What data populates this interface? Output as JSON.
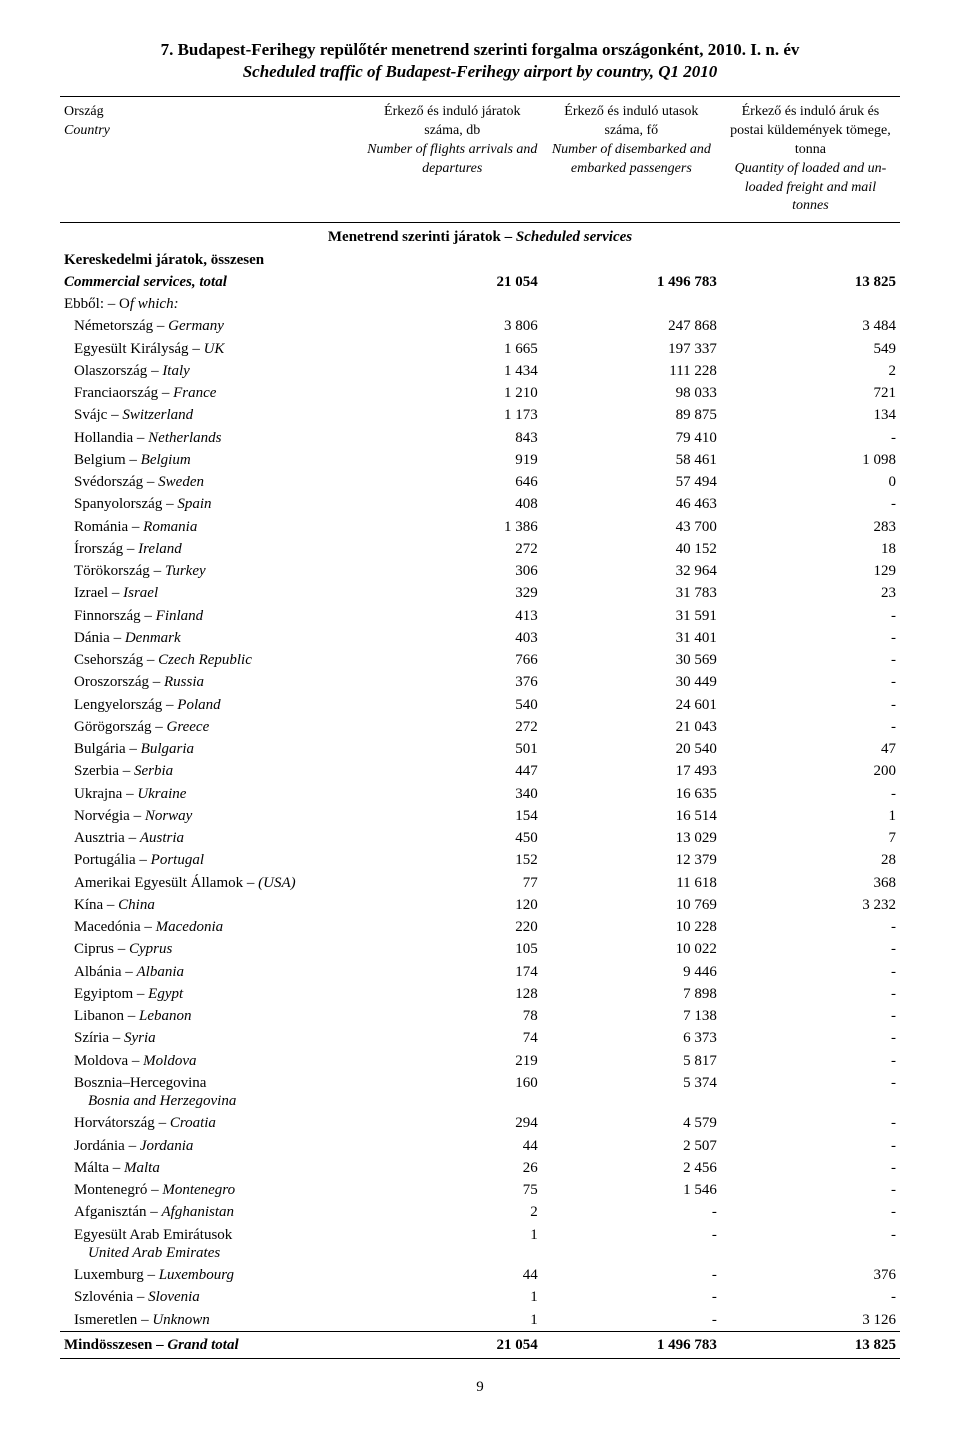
{
  "title_hu": "7. Budapest-Ferihegy repülőtér menetrend szerinti forgalma országonként, 2010. I. n. év",
  "title_en": "Scheduled traffic of Budapest-Ferihegy airport by country, Q1 2010",
  "page_number": "9",
  "headers": {
    "country_hu": "Ország",
    "country_en": "Country",
    "col1_hu": "Érkező és induló járatok száma, db",
    "col1_en": "Number of flights arrivals and departures",
    "col2_hu": "Érkező és induló utasok száma, fő",
    "col2_en": "Number of disembarked and embarked passengers",
    "col3_hu": "Érkező és induló áruk és postai küldemények tömege, tonna",
    "col3_en": "Quantity of loaded and un-loaded freight and mail tonnes"
  },
  "section_hu": "Menetrend szerinti járatok – ",
  "section_en": "Scheduled services",
  "group_hu": "Kereskedelmi járatok, összesen",
  "group_en_label": "Commercial services, total",
  "group_vals": [
    "21 054",
    "1 496 783",
    "13 825"
  ],
  "ofwhich_hu": "Ebből: – O",
  "ofwhich_en": "f which:",
  "rows": [
    {
      "hu": "Németország",
      "en": "Germany",
      "v": [
        "3 806",
        "247 868",
        "3 484"
      ]
    },
    {
      "hu": "Egyesült Királyság",
      "en": "UK",
      "v": [
        "1 665",
        "197 337",
        "549"
      ]
    },
    {
      "hu": "Olaszország",
      "en": "Italy",
      "v": [
        "1 434",
        "111 228",
        "2"
      ]
    },
    {
      "hu": "Franciaország",
      "en": "France",
      "v": [
        "1 210",
        "98 033",
        "721"
      ]
    },
    {
      "hu": "Svájc",
      "en": "Switzerland",
      "v": [
        "1 173",
        "89 875",
        "134"
      ]
    },
    {
      "hu": "Hollandia",
      "en": "Netherlands",
      "v": [
        "843",
        "79 410",
        "-"
      ]
    },
    {
      "hu": "Belgium",
      "en": "Belgium",
      "v": [
        "919",
        "58 461",
        "1 098"
      ]
    },
    {
      "hu": "Svédország",
      "en": "Sweden",
      "v": [
        "646",
        "57 494",
        "0"
      ]
    },
    {
      "hu": "Spanyolország",
      "en": "Spain",
      "v": [
        "408",
        "46 463",
        "-"
      ]
    },
    {
      "hu": "Románia",
      "en": "Romania",
      "v": [
        "1 386",
        "43 700",
        "283"
      ]
    },
    {
      "hu": "Írország",
      "en": "Ireland",
      "v": [
        "272",
        "40 152",
        "18"
      ]
    },
    {
      "hu": "Törökország",
      "en": "Turkey",
      "v": [
        "306",
        "32 964",
        "129"
      ]
    },
    {
      "hu": "Izrael",
      "en": "Israel",
      "v": [
        "329",
        "31 783",
        "23"
      ]
    },
    {
      "hu": "Finnország",
      "en": "Finland",
      "v": [
        "413",
        "31 591",
        "-"
      ]
    },
    {
      "hu": "Dánia",
      "en": "Denmark",
      "v": [
        "403",
        "31 401",
        "-"
      ]
    },
    {
      "hu": "Csehország",
      "en": "Czech Republic",
      "v": [
        "766",
        "30 569",
        "-"
      ]
    },
    {
      "hu": "Oroszország",
      "en": "Russia",
      "v": [
        "376",
        "30 449",
        "-"
      ]
    },
    {
      "hu": "Lengyelország",
      "en": "Poland",
      "v": [
        "540",
        "24 601",
        "-"
      ]
    },
    {
      "hu": "Görögország",
      "en": "Greece",
      "v": [
        "272",
        "21 043",
        "-"
      ]
    },
    {
      "hu": "Bulgária",
      "en": "Bulgaria",
      "v": [
        "501",
        "20 540",
        "47"
      ]
    },
    {
      "hu": "Szerbia",
      "en": "Serbia",
      "v": [
        "447",
        "17 493",
        "200"
      ]
    },
    {
      "hu": "Ukrajna",
      "en": "Ukraine",
      "v": [
        "340",
        "16 635",
        "-"
      ]
    },
    {
      "hu": "Norvégia",
      "en": "Norway",
      "v": [
        "154",
        "16 514",
        "1"
      ]
    },
    {
      "hu": "Ausztria",
      "en": "Austria",
      "v": [
        "450",
        "13 029",
        "7"
      ]
    },
    {
      "hu": "Portugália",
      "en": "Portugal",
      "v": [
        "152",
        "12 379",
        "28"
      ]
    },
    {
      "hu": "Amerikai Egyesült Államok",
      "en": "(USA)",
      "v": [
        "77",
        "11 618",
        "368"
      ]
    },
    {
      "hu": "Kína",
      "en": "China",
      "v": [
        "120",
        "10 769",
        "3 232"
      ]
    },
    {
      "hu": "Macedónia",
      "en": "Macedonia",
      "v": [
        "220",
        "10 228",
        "-"
      ]
    },
    {
      "hu": "Ciprus",
      "en": "Cyprus",
      "v": [
        "105",
        "10 022",
        "-"
      ]
    },
    {
      "hu": "Albánia",
      "en": "Albania",
      "v": [
        "174",
        "9 446",
        "-"
      ]
    },
    {
      "hu": "Egyiptom",
      "en": "Egypt",
      "v": [
        "128",
        "7 898",
        "-"
      ]
    },
    {
      "hu": "Libanon",
      "en": "Lebanon",
      "v": [
        "78",
        "7 138",
        "-"
      ]
    },
    {
      "hu": "Szíria",
      "en": "Syria",
      "v": [
        "74",
        "6 373",
        "-"
      ]
    },
    {
      "hu": "Moldova",
      "en": "Moldova",
      "v": [
        "219",
        "5 817",
        "-"
      ]
    },
    {
      "hu": "Bosznia–Hercegovina",
      "en": "",
      "v": [
        "160",
        "5 374",
        "-"
      ],
      "sub_en": "Bosnia and Herzegovina"
    },
    {
      "hu": "Horvátország",
      "en": "Croatia",
      "v": [
        "294",
        "4 579",
        "-"
      ]
    },
    {
      "hu": "Jordánia",
      "en": "Jordania",
      "v": [
        "44",
        "2 507",
        "-"
      ]
    },
    {
      "hu": "Málta",
      "en": "Malta",
      "v": [
        "26",
        "2 456",
        "-"
      ]
    },
    {
      "hu": "Montenegró",
      "en": "Montenegro",
      "v": [
        "75",
        "1 546",
        "-"
      ]
    },
    {
      "hu": "Afganisztán",
      "en": "Afghanistan",
      "v": [
        "2",
        "-",
        "-"
      ]
    },
    {
      "hu": "Egyesült Arab Emirátusok",
      "en": "",
      "v": [
        "1",
        "-",
        "-"
      ],
      "sub_en": "United Arab Emirates"
    },
    {
      "hu": "Luxemburg",
      "en": "Luxembourg",
      "v": [
        "44",
        "-",
        "376"
      ]
    },
    {
      "hu": "Szlovénia",
      "en": "Slovenia",
      "v": [
        "1",
        "-",
        "-"
      ]
    },
    {
      "hu": "Ismeretlen",
      "en": "Unknown",
      "v": [
        "1",
        "-",
        "3 126"
      ]
    }
  ],
  "total_hu": "Mindösszesen",
  "total_en": "Grand total",
  "total_vals": [
    "21 054",
    "1 496 783",
    "13 825"
  ]
}
